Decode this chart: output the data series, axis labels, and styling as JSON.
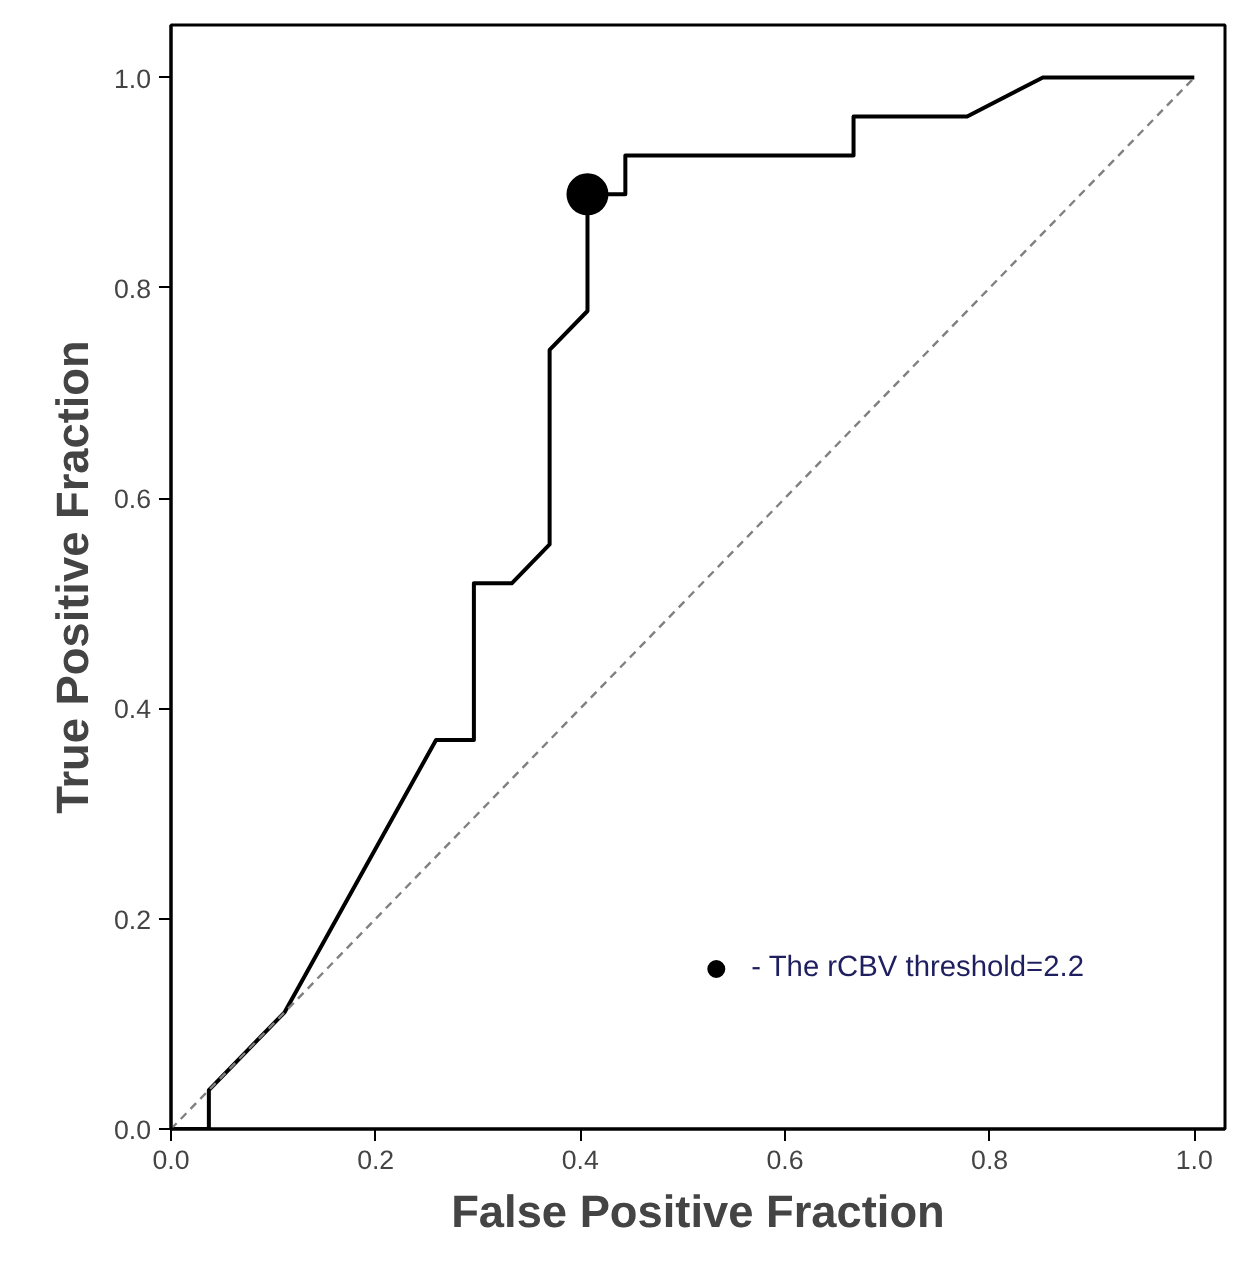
{
  "chart_data": {
    "type": "line",
    "xlabel": "False Positive Fraction",
    "ylabel": "True Positive Fraction",
    "xlim": [
      0,
      1.03
    ],
    "ylim": [
      0,
      1.05
    ],
    "xticks": [
      {
        "value": 0,
        "label": "0.0"
      },
      {
        "value": 0.2,
        "label": "0.2"
      },
      {
        "value": 0.4,
        "label": "0.4"
      },
      {
        "value": 0.6,
        "label": "0.6"
      },
      {
        "value": 0.8,
        "label": "0.8"
      },
      {
        "value": 1,
        "label": "1.0"
      }
    ],
    "yticks": [
      {
        "value": 0,
        "label": "0.0"
      },
      {
        "value": 0.2,
        "label": "0.2"
      },
      {
        "value": 0.4,
        "label": "0.4"
      },
      {
        "value": 0.6,
        "label": "0.6"
      },
      {
        "value": 0.8,
        "label": "0.8"
      },
      {
        "value": 1,
        "label": "1.0"
      }
    ],
    "grid": false,
    "legend": "bottom right",
    "series": [
      {
        "color": "#000000",
        "line_style": "solid",
        "marker": "none",
        "x": [
          0,
          0.037,
          0.037,
          0.111,
          0.259,
          0.296,
          0.296,
          0.333,
          0.37,
          0.37,
          0.407,
          0.407,
          0.444,
          0.444,
          0.667,
          0.667,
          0.778,
          0.852,
          1.0
        ],
        "values": [
          0,
          0,
          0.037,
          0.111,
          0.37,
          0.37,
          0.519,
          0.519,
          0.556,
          0.741,
          0.778,
          0.889,
          0.889,
          0.926,
          0.926,
          0.963,
          0.963,
          1.0,
          1.0
        ]
      },
      {
        "type": "line",
        "color": "#808080",
        "line_style": "dashed",
        "marker": "none",
        "x": [
          0,
          1
        ],
        "values": [
          0,
          1
        ]
      },
      {
        "type": "scatter",
        "name": "- The rCBV threshold=2.2",
        "color": "#000000",
        "marker": "circle",
        "x": [
          0.407
        ],
        "values": [
          0.889
        ]
      }
    ]
  }
}
